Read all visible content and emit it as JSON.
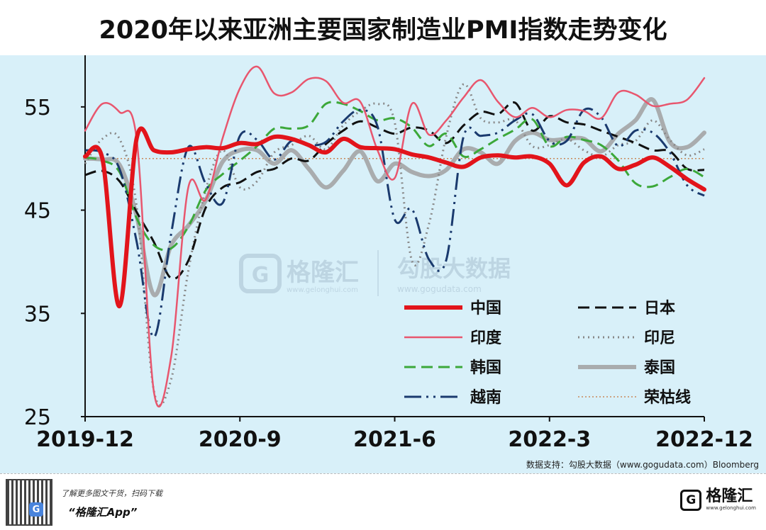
{
  "title": "2020年以来亚洲主要国家制造业PMI指数走势变化",
  "source": "数据支持：勾股大数据（www.gogudata.com）Bloomberg",
  "watermark": {
    "left_cn": "格隆汇",
    "left_url": "www.gelonghui.com",
    "right_cn": "勾股大数据",
    "right_url": "www.gogudata.com"
  },
  "footer": {
    "promo": "了解更多图文干货，扫码下载",
    "app_name": "“格隆汇App”",
    "logo_cn": "格隆汇",
    "logo_url": "www.gelonghui.com",
    "qr_center": "G"
  },
  "chart_data": {
    "type": "line",
    "title": "2020年以来亚洲主要国家制造业PMI指数走势变化",
    "xlabel": "",
    "ylabel": "",
    "ylim": [
      25,
      60
    ],
    "yticks": [
      25,
      35,
      45,
      55
    ],
    "x_tick_labels": [
      "2019-12",
      "2020-9",
      "2021-6",
      "2022-3",
      "2022-12"
    ],
    "x": [
      "2019-12",
      "2020-1",
      "2020-2",
      "2020-3",
      "2020-4",
      "2020-5",
      "2020-6",
      "2020-7",
      "2020-8",
      "2020-9",
      "2020-10",
      "2020-11",
      "2020-12",
      "2021-1",
      "2021-2",
      "2021-3",
      "2021-4",
      "2021-5",
      "2021-6",
      "2021-7",
      "2021-8",
      "2021-9",
      "2021-10",
      "2021-11",
      "2021-12",
      "2022-1",
      "2022-2",
      "2022-3",
      "2022-4",
      "2022-5",
      "2022-6",
      "2022-7",
      "2022-8",
      "2022-9",
      "2022-10",
      "2022-11",
      "2022-12"
    ],
    "series": [
      {
        "name": "中国",
        "color": "#e2141b",
        "dash": "",
        "width": 6,
        "values": [
          50.2,
          50.0,
          35.7,
          52.0,
          50.8,
          50.6,
          50.9,
          51.1,
          51.0,
          51.5,
          51.4,
          52.1,
          51.9,
          51.3,
          50.6,
          51.9,
          51.1,
          51.0,
          50.9,
          50.4,
          50.1,
          49.6,
          49.2,
          50.1,
          50.3,
          50.1,
          50.2,
          49.5,
          47.4,
          49.6,
          50.2,
          49.0,
          49.4,
          50.1,
          49.2,
          48.0,
          47.0
        ]
      },
      {
        "name": "日本",
        "color": "#111111",
        "dash": "16 8",
        "width": 3,
        "values": [
          48.4,
          48.8,
          47.8,
          44.8,
          41.9,
          38.4,
          40.1,
          45.2,
          47.2,
          47.7,
          48.7,
          49.0,
          50.0,
          49.8,
          51.4,
          52.7,
          53.6,
          53.0,
          52.4,
          53.0,
          52.7,
          51.5,
          53.2,
          54.5,
          54.3,
          55.4,
          52.7,
          54.1,
          53.5,
          53.3,
          52.7,
          52.1,
          51.5,
          50.8,
          50.7,
          49.0,
          48.9
        ]
      },
      {
        "name": "印度",
        "color": "#e8566e",
        "dash": "",
        "width": 2.5,
        "values": [
          52.7,
          55.3,
          54.5,
          51.8,
          27.4,
          30.8,
          47.2,
          46.0,
          52.0,
          56.8,
          58.9,
          56.3,
          56.4,
          57.7,
          57.5,
          55.4,
          55.5,
          50.8,
          48.1,
          55.3,
          52.3,
          53.7,
          55.9,
          57.6,
          55.5,
          54.0,
          54.9,
          54.0,
          54.7,
          54.6,
          53.9,
          56.4,
          56.2,
          55.1,
          55.3,
          55.7,
          57.8
        ]
      },
      {
        "name": "印尼",
        "color": "#888888",
        "dash": "2 5",
        "width": 3,
        "values": [
          49.5,
          51.9,
          51.9,
          45.3,
          27.5,
          28.6,
          39.1,
          46.9,
          50.8,
          47.2,
          47.8,
          50.6,
          51.3,
          52.2,
          50.9,
          53.2,
          54.6,
          55.3,
          53.5,
          40.1,
          43.7,
          52.2,
          57.2,
          53.9,
          53.5,
          53.7,
          51.2,
          51.3,
          51.9,
          50.8,
          50.2,
          51.3,
          51.7,
          53.7,
          51.8,
          50.3,
          50.9
        ]
      },
      {
        "name": "韩国",
        "color": "#3ca83a",
        "dash": "16 8",
        "width": 3,
        "values": [
          50.1,
          49.8,
          48.7,
          44.2,
          41.6,
          41.3,
          43.4,
          46.9,
          48.5,
          49.8,
          51.2,
          52.9,
          52.9,
          53.2,
          55.3,
          55.3,
          54.6,
          53.7,
          53.9,
          53.0,
          51.2,
          52.4,
          50.2,
          50.9,
          51.9,
          52.8,
          53.8,
          51.2,
          52.1,
          51.8,
          51.3,
          49.8,
          47.6,
          47.3,
          48.2,
          49.0,
          48.2
        ]
      },
      {
        "name": "泰国",
        "color": "#a9acae",
        "dash": "",
        "width": 6,
        "values": [
          50.0,
          49.9,
          49.4,
          44.4,
          36.8,
          41.6,
          43.5,
          45.9,
          49.7,
          50.8,
          50.8,
          49.5,
          50.8,
          49.0,
          47.2,
          48.8,
          50.7,
          47.8,
          49.5,
          48.7,
          48.3,
          48.9,
          50.9,
          50.6,
          49.5,
          51.7,
          52.5,
          51.8,
          51.9,
          51.9,
          50.7,
          52.4,
          53.7,
          55.7,
          51.6,
          51.1,
          52.5
        ]
      },
      {
        "name": "越南",
        "color": "#1a3a6e",
        "dash": "24 7 3 7 3 7",
        "width": 3,
        "values": [
          50.8,
          50.6,
          49.0,
          41.9,
          32.7,
          42.7,
          51.1,
          47.6,
          45.7,
          52.2,
          51.8,
          49.9,
          51.7,
          51.3,
          51.6,
          53.6,
          54.7,
          53.1,
          44.1,
          45.1,
          40.2,
          40.2,
          52.1,
          52.2,
          52.5,
          53.7,
          54.3,
          51.7,
          51.7,
          54.7,
          54.0,
          51.2,
          52.7,
          52.5,
          50.6,
          47.4,
          46.4
        ]
      },
      {
        "name": "荣枯线",
        "color": "#c9895a",
        "dash": "2 3",
        "width": 1.5,
        "values": [
          50,
          50,
          50,
          50,
          50,
          50,
          50,
          50,
          50,
          50,
          50,
          50,
          50,
          50,
          50,
          50,
          50,
          50,
          50,
          50,
          50,
          50,
          50,
          50,
          50,
          50,
          50,
          50,
          50,
          50,
          50,
          50,
          50,
          50,
          50,
          50,
          50
        ]
      }
    ],
    "legend": {
      "position": "bottom-right",
      "columns": 2
    },
    "grid": false
  }
}
